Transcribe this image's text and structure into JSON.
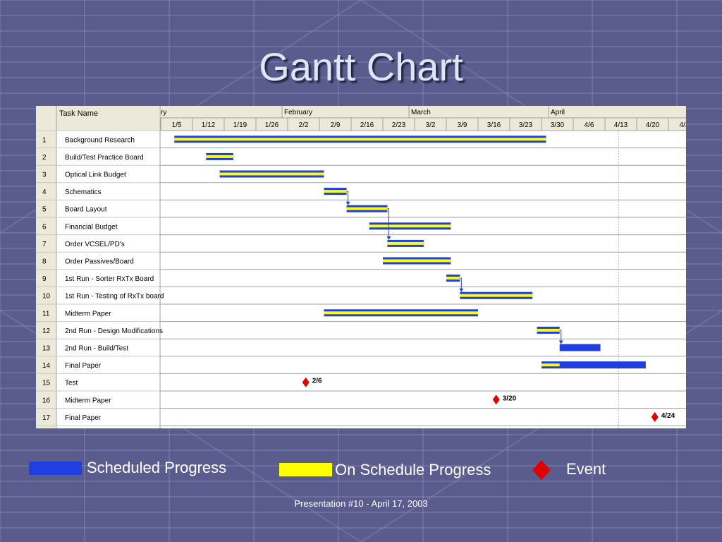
{
  "slide": {
    "title": "Gantt Chart",
    "footer": "Presentation #10 - April 17, 2003"
  },
  "legend": [
    {
      "label": "Scheduled Progress",
      "color": "#1f3fe0",
      "shape": "bar"
    },
    {
      "label": "On Schedule Progress",
      "color": "#ffff00",
      "shape": "bar"
    },
    {
      "label": "Event",
      "color": "#e00000",
      "shape": "diamond"
    }
  ],
  "chart_data": {
    "type": "gantt",
    "header": {
      "task_column": "Task Name",
      "month_labels": [
        "ry",
        "February",
        "March",
        "April"
      ],
      "week_labels": [
        "1/5",
        "1/12",
        "1/19",
        "1/26",
        "2/2",
        "2/9",
        "2/16",
        "2/23",
        "3/2",
        "3/9",
        "3/16",
        "3/23",
        "3/30",
        "4/6",
        "4/13",
        "4/20",
        "4/2"
      ]
    },
    "tasks": [
      {
        "id": 1,
        "name": "Background Research",
        "start": "2003-01-08",
        "end": "2003-03-31",
        "style": "striped"
      },
      {
        "id": 2,
        "name": "Build/Test Practice Board",
        "start": "2003-01-15",
        "end": "2003-01-21",
        "style": "striped"
      },
      {
        "id": 3,
        "name": "Optical Link Budget",
        "start": "2003-01-18",
        "end": "2003-02-10",
        "style": "striped"
      },
      {
        "id": 4,
        "name": "Schematics",
        "start": "2003-02-10",
        "end": "2003-02-15",
        "style": "striped"
      },
      {
        "id": 5,
        "name": "Board Layout",
        "start": "2003-02-15",
        "end": "2003-02-24",
        "style": "striped"
      },
      {
        "id": 6,
        "name": "Financial Budget",
        "start": "2003-02-20",
        "end": "2003-03-10",
        "style": "striped"
      },
      {
        "id": 7,
        "name": "Order VCSEL/PD's",
        "start": "2003-02-24",
        "end": "2003-03-04",
        "style": "striped"
      },
      {
        "id": 8,
        "name": "Order Passives/Board",
        "start": "2003-02-23",
        "end": "2003-03-10",
        "style": "striped"
      },
      {
        "id": 9,
        "name": "1st Run - Sorter RxTx Board",
        "start": "2003-03-09",
        "end": "2003-03-12",
        "style": "striped"
      },
      {
        "id": 10,
        "name": "1st Run - Testing of RxTx board",
        "start": "2003-03-12",
        "end": "2003-03-28",
        "style": "striped"
      },
      {
        "id": 11,
        "name": "Midterm Paper",
        "start": "2003-02-10",
        "end": "2003-03-16",
        "style": "striped"
      },
      {
        "id": 12,
        "name": "2nd Run - Design Modifications",
        "start": "2003-03-29",
        "end": "2003-04-03",
        "style": "striped"
      },
      {
        "id": 13,
        "name": "2nd Run - Build/Test",
        "start": "2003-04-03",
        "end": "2003-04-12",
        "style": "scheduled"
      },
      {
        "id": 14,
        "name": "Final Paper",
        "start": "2003-03-30",
        "end": "2003-04-22",
        "style": "partial",
        "progress_end": "2003-04-03"
      },
      {
        "id": 15,
        "name": "Test",
        "milestone": "2003-02-06",
        "label": "2/6"
      },
      {
        "id": 16,
        "name": "Midterm Paper",
        "milestone": "2003-03-20",
        "label": "3/20"
      },
      {
        "id": 17,
        "name": "Final Paper",
        "milestone": "2003-04-24",
        "label": "4/24"
      }
    ],
    "dependencies": [
      [
        4,
        5
      ],
      [
        5,
        7
      ],
      [
        9,
        10
      ],
      [
        12,
        13
      ]
    ],
    "today_line": "2003-04-16",
    "colors": {
      "scheduled": "#1f3fe0",
      "on_schedule": "#ffff00",
      "event": "#e00000",
      "dependency": "#1f3fe0"
    }
  }
}
